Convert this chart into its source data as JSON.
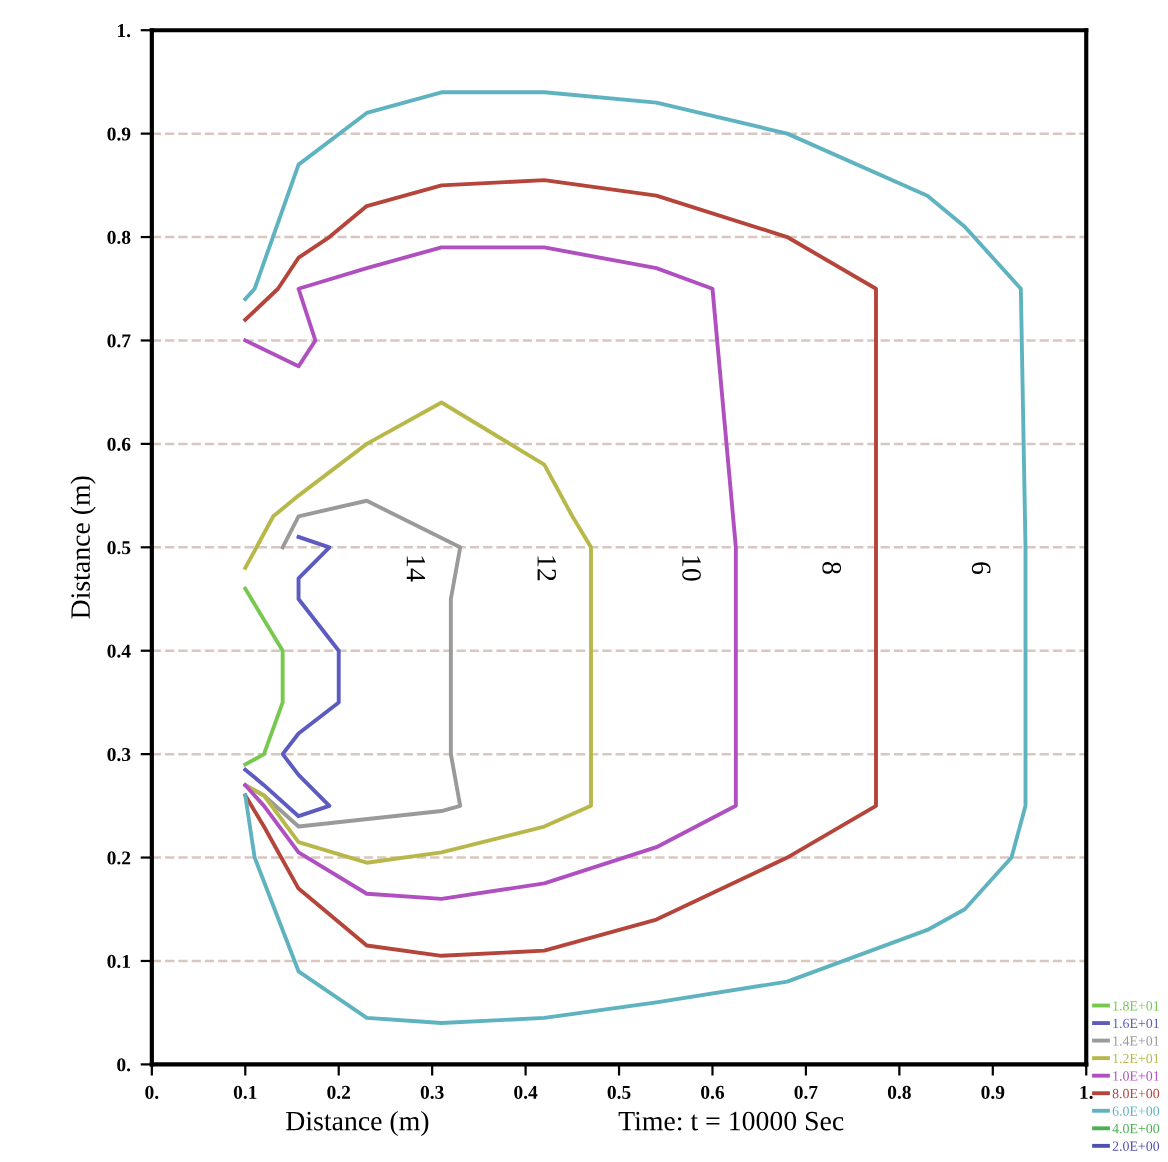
{
  "chart_data": {
    "type": "line",
    "xlabel": "Distance (m)",
    "ylabel": "Distance (m)",
    "xlim": [
      0,
      1
    ],
    "ylim": [
      0,
      1
    ],
    "xticks": [
      {
        "value": 0,
        "label": "0."
      },
      0.1,
      0.2,
      0.3,
      0.4,
      0.5,
      0.6,
      0.7,
      0.8,
      0.9,
      {
        "value": 1,
        "label": "1."
      }
    ],
    "yticks": [
      {
        "value": 0,
        "label": "0."
      },
      0.1,
      0.2,
      0.3,
      0.4,
      0.5,
      0.6,
      0.7,
      0.8,
      0.9,
      {
        "value": 1,
        "label": "1."
      }
    ],
    "grid": "y",
    "legend": "bottom right",
    "marker": "none",
    "line_style": "solid",
    "annotations": [
      "Time: t = 10000 Sec",
      "14",
      "12",
      "10",
      "8",
      "6"
    ],
    "series": [
      {
        "name": "1.8E+01",
        "color": "#78c850",
        "x": [
          0.1,
          0.14,
          0.14,
          0.12,
          0.1
        ],
        "values": [
          0.46,
          0.4,
          0.35,
          0.3,
          0.29
        ]
      },
      {
        "name": "1.6E+01",
        "color": "#5b5bc0",
        "x": [
          0.157,
          0.19,
          0.157,
          0.157,
          0.2,
          0.2,
          0.157,
          0.14,
          0.157,
          0.19,
          0.157,
          0.12,
          0.1
        ],
        "values": [
          0.51,
          0.5,
          0.47,
          0.45,
          0.4,
          0.35,
          0.32,
          0.3,
          0.28,
          0.25,
          0.24,
          0.27,
          0.285
        ]
      },
      {
        "name": "1.4E+01",
        "color": "#9a9a9a",
        "x": [
          0.14,
          0.157,
          0.23,
          0.33,
          0.32,
          0.32,
          0.32,
          0.33,
          0.31,
          0.157,
          0.12,
          0.1
        ],
        "values": [
          0.5,
          0.53,
          0.545,
          0.5,
          0.45,
          0.35,
          0.3,
          0.25,
          0.245,
          0.23,
          0.26,
          0.27
        ]
      },
      {
        "name": "1.2E+01",
        "color": "#b8b84a",
        "x": [
          0.1,
          0.13,
          0.157,
          0.23,
          0.31,
          0.42,
          0.45,
          0.47,
          0.47,
          0.47,
          0.42,
          0.31,
          0.23,
          0.157,
          0.12,
          0.1
        ],
        "values": [
          0.48,
          0.53,
          0.55,
          0.6,
          0.64,
          0.58,
          0.53,
          0.5,
          0.35,
          0.25,
          0.23,
          0.205,
          0.195,
          0.215,
          0.26,
          0.27
        ]
      },
      {
        "name": "1.0E+01",
        "color": "#b04fc0",
        "x": [
          0.1,
          0.157,
          0.175,
          0.157,
          0.23,
          0.31,
          0.42,
          0.54,
          0.6,
          0.625,
          0.625,
          0.54,
          0.42,
          0.31,
          0.23,
          0.157,
          0.12,
          0.1
        ],
        "values": [
          0.7,
          0.675,
          0.7,
          0.75,
          0.77,
          0.79,
          0.79,
          0.77,
          0.75,
          0.5,
          0.25,
          0.21,
          0.175,
          0.16,
          0.165,
          0.205,
          0.25,
          0.27
        ]
      },
      {
        "name": "8.0E+00",
        "color": "#b5443a",
        "x": [
          0.1,
          0.135,
          0.157,
          0.19,
          0.23,
          0.31,
          0.42,
          0.54,
          0.68,
          0.775,
          0.775,
          0.775,
          0.68,
          0.54,
          0.42,
          0.31,
          0.23,
          0.157,
          0.12,
          0.1
        ],
        "values": [
          0.72,
          0.75,
          0.78,
          0.8,
          0.83,
          0.85,
          0.855,
          0.84,
          0.8,
          0.75,
          0.5,
          0.25,
          0.2,
          0.14,
          0.11,
          0.105,
          0.115,
          0.17,
          0.23,
          0.26
        ]
      },
      {
        "name": "6.0E+00",
        "color": "#5fb3c0",
        "x": [
          0.1,
          0.11,
          0.157,
          0.23,
          0.31,
          0.42,
          0.54,
          0.68,
          0.83,
          0.87,
          0.93,
          0.935,
          0.935,
          0.92,
          0.87,
          0.83,
          0.68,
          0.54,
          0.42,
          0.31,
          0.23,
          0.157,
          0.11,
          0.1
        ],
        "values": [
          0.74,
          0.75,
          0.87,
          0.92,
          0.94,
          0.94,
          0.93,
          0.9,
          0.84,
          0.81,
          0.75,
          0.5,
          0.25,
          0.2,
          0.15,
          0.13,
          0.08,
          0.06,
          0.045,
          0.04,
          0.045,
          0.09,
          0.2,
          0.26
        ]
      },
      {
        "name": "4.0E+00",
        "color": "#4caf50"
      },
      {
        "name": "2.0E+00",
        "color": "#5050b0"
      }
    ]
  }
}
